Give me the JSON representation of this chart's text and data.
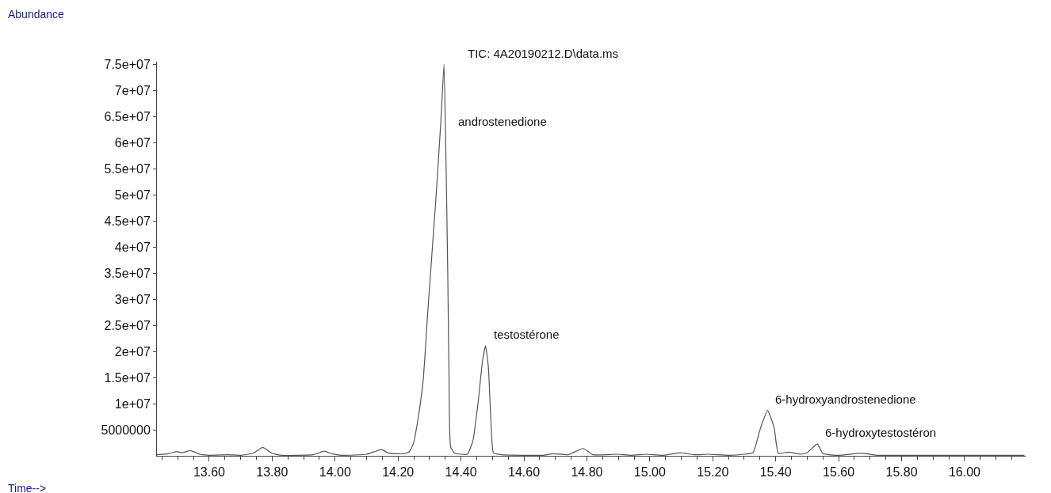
{
  "chart_data": {
    "type": "line",
    "title": "TIC: 4A20190212.D\\data.ms",
    "xlabel": "Time-->",
    "ylabel": "Abundance",
    "x": [
      13.434,
      13.47,
      13.497,
      13.515,
      13.54,
      13.57,
      13.6,
      13.66,
      13.7,
      13.74,
      13.77,
      13.8,
      13.83,
      13.93,
      13.966,
      13.99,
      14.02,
      14.1,
      14.148,
      14.17,
      14.22,
      14.236,
      14.249,
      14.263,
      14.28,
      14.295,
      14.32,
      14.336,
      14.346,
      14.352,
      14.358,
      14.362,
      14.367,
      14.38,
      14.42,
      14.438,
      14.455,
      14.468,
      14.478,
      14.487,
      14.495,
      14.503,
      14.53,
      14.66,
      14.694,
      14.74,
      14.788,
      14.82,
      14.896,
      14.94,
      14.99,
      15.04,
      15.097,
      15.14,
      15.185,
      15.25,
      15.3,
      15.328,
      15.352,
      15.374,
      15.395,
      15.408,
      15.441,
      15.48,
      15.5,
      15.532,
      15.55,
      15.6,
      15.672,
      15.72,
      15.8,
      15.9,
      16.0,
      16.19
    ],
    "series": [
      {
        "color": "#555555",
        "values": [
          200000.0,
          400000.0,
          800000.0,
          600000.0,
          1000000.0,
          300000.0,
          100000.0,
          200000.0,
          100000.0,
          500000.0,
          1600000.0,
          500000.0,
          100000.0,
          200000.0,
          900000.0,
          400000.0,
          100000.0,
          300000.0,
          1200000.0,
          500000.0,
          400000.0,
          800000.0,
          2400000.0,
          6900000.0,
          14500000.0,
          28000000.0,
          49000000.0,
          64000000.0,
          75000000.0,
          58000000.0,
          35000000.0,
          15000000.0,
          1700000.0,
          500000.0,
          300000.0,
          2900000.0,
          10500000.0,
          18000000.0,
          21100000.0,
          17000000.0,
          6900000.0,
          600000.0,
          200000.0,
          100000.0,
          400000.0,
          200000.0,
          1400000.0,
          200000.0,
          300000.0,
          100000.0,
          300000.0,
          100000.0,
          600000.0,
          200000.0,
          300000.0,
          100000.0,
          300000.0,
          600000.0,
          5400000.0,
          8700000.0,
          5400000.0,
          500000.0,
          700000.0,
          300000.0,
          600000.0,
          2300000.0,
          400000.0,
          100000.0,
          500000.0,
          100000.0,
          100000.0,
          100000.0,
          100000.0,
          100000.0
        ]
      }
    ],
    "xlim": [
      13.434,
      16.194
    ],
    "ylim": [
      0,
      75500000.0
    ],
    "xticks": [
      {
        "value": 13.6,
        "label": "13.60"
      },
      {
        "value": 13.8,
        "label": "13.80"
      },
      {
        "value": 14.0,
        "label": "14.00"
      },
      {
        "value": 14.2,
        "label": "14.20"
      },
      {
        "value": 14.4,
        "label": "14.40"
      },
      {
        "value": 14.6,
        "label": "14.60"
      },
      {
        "value": 14.8,
        "label": "14.80"
      },
      {
        "value": 15.0,
        "label": "15.00"
      },
      {
        "value": 15.2,
        "label": "15.20"
      },
      {
        "value": 15.4,
        "label": "15.40"
      },
      {
        "value": 15.6,
        "label": "15.60"
      },
      {
        "value": 15.8,
        "label": "15.80"
      },
      {
        "value": 16.0,
        "label": "16.00"
      }
    ],
    "yticks": [
      5000000,
      {
        "value": 10000000.0,
        "label": "1e+07"
      },
      {
        "value": 15000000.0,
        "label": "1.5e+07"
      },
      {
        "value": 20000000.0,
        "label": "2e+07"
      },
      {
        "value": 25000000.0,
        "label": "2.5e+07"
      },
      {
        "value": 30000000.0,
        "label": "3e+07"
      },
      {
        "value": 35000000.0,
        "label": "3.5e+07"
      },
      {
        "value": 40000000.0,
        "label": "4e+07"
      },
      {
        "value": 45000000.0,
        "label": "4.5e+07"
      },
      {
        "value": 50000000.0,
        "label": "5e+07"
      },
      {
        "value": 55000000.0,
        "label": "5.5e+07"
      },
      {
        "value": 60000000.0,
        "label": "6e+07"
      },
      {
        "value": 65000000.0,
        "label": "6.5e+07"
      },
      {
        "value": 70000000.0,
        "label": "7e+07"
      },
      {
        "value": 75000000.0,
        "label": "7.5e+07"
      }
    ],
    "annotations": [
      {
        "text": "androstenedione",
        "x": 14.35,
        "y": 64000000.0
      },
      {
        "text": "testostérone",
        "x": 14.478,
        "y": 21100000.0
      },
      {
        "text": "6-hydroxyandrostenedione",
        "x": 15.374,
        "y": 8700000.0
      },
      {
        "text": "6-hydroxytestostéron",
        "x": 15.532,
        "y": 2300000.0
      }
    ],
    "marker": "none",
    "line_style": "solid"
  }
}
